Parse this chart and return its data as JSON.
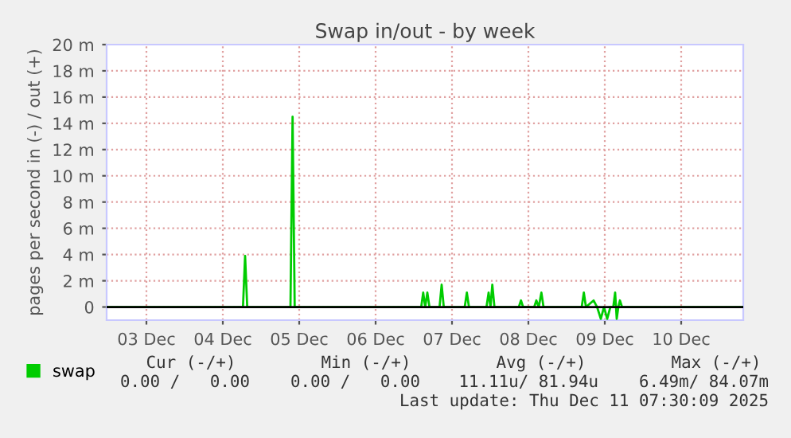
{
  "chart_data": {
    "type": "line",
    "title": "Swap in/out - by week",
    "ylabel": "pages per second in (-) / out (+)",
    "xlim": [
      "2025-12-02T23:30",
      "2025-12-11T07:30"
    ],
    "xticks": [
      {
        "value": "2025-12-03T12:00",
        "label": "03 Dec"
      },
      {
        "value": "2025-12-04T12:00",
        "label": "04 Dec"
      },
      {
        "value": "2025-12-05T12:00",
        "label": "05 Dec"
      },
      {
        "value": "2025-12-06T12:00",
        "label": "06 Dec"
      },
      {
        "value": "2025-12-07T12:00",
        "label": "07 Dec"
      },
      {
        "value": "2025-12-08T12:00",
        "label": "08 Dec"
      },
      {
        "value": "2025-12-09T12:00",
        "label": "09 Dec"
      },
      {
        "value": "2025-12-10T12:00",
        "label": "10 Dec"
      }
    ],
    "ylim": [
      -1,
      20
    ],
    "yticks": [
      0,
      {
        "value": 2,
        "label": "2 m"
      },
      {
        "value": 4,
        "label": "4 m"
      },
      {
        "value": 6,
        "label": "6 m"
      },
      {
        "value": 8,
        "label": "8 m"
      },
      {
        "value": 10,
        "label": "10 m"
      },
      {
        "value": 12,
        "label": "12 m"
      },
      {
        "value": 14,
        "label": "14 m"
      },
      {
        "value": 16,
        "label": "16 m"
      },
      {
        "value": 18,
        "label": "18 m"
      },
      {
        "value": 20,
        "label": "20 m"
      }
    ],
    "grid": true,
    "legend": "bottom",
    "ref_lines": [
      {
        "axis": "y",
        "value": 0,
        "color": "#000000"
      }
    ],
    "series": [
      {
        "name": "swap",
        "color": "#00cc00",
        "x": [
          "2025-12-02T23:30",
          "2025-12-04T18:20",
          "2025-12-04T19:00",
          "2025-12-04T19:40",
          "2025-12-05T09:15",
          "2025-12-05T09:55",
          "2025-12-05T10:35",
          "2025-12-07T02:20",
          "2025-12-07T02:57",
          "2025-12-07T03:35",
          "2025-12-07T04:15",
          "2025-12-07T04:55",
          "2025-12-07T08:05",
          "2025-12-07T08:45",
          "2025-12-07T09:25",
          "2025-12-07T16:00",
          "2025-12-07T16:40",
          "2025-12-07T17:20",
          "2025-12-07T22:50",
          "2025-12-07T23:30",
          "2025-12-08T00:05",
          "2025-12-08T00:40",
          "2025-12-08T01:20",
          "2025-12-08T09:00",
          "2025-12-08T09:40",
          "2025-12-08T10:20",
          "2025-12-08T13:50",
          "2025-12-08T14:30",
          "2025-12-08T15:15",
          "2025-12-08T16:05",
          "2025-12-08T16:45",
          "2025-12-09T04:45",
          "2025-12-09T05:25",
          "2025-12-09T06:05",
          "2025-12-09T08:30",
          "2025-12-09T09:35",
          "2025-12-09T10:45",
          "2025-12-09T11:45",
          "2025-12-09T12:45",
          "2025-12-09T13:45",
          "2025-12-09T14:40",
          "2025-12-09T15:15",
          "2025-12-09T15:45",
          "2025-12-09T16:15",
          "2025-12-09T16:45",
          "2025-12-09T17:25",
          "2025-12-11T07:30"
        ],
        "values": [
          0,
          0,
          3.9,
          0,
          0,
          14.5,
          0,
          0,
          1.1,
          0,
          1.1,
          0,
          0,
          1.7,
          0,
          0,
          1.1,
          0,
          0,
          1.1,
          0,
          1.7,
          0,
          0,
          0.5,
          0,
          0,
          0.5,
          0,
          1.1,
          0,
          0,
          1.1,
          0,
          0.5,
          0,
          -0.9,
          0,
          -0.9,
          0,
          0,
          1.1,
          -0.9,
          0,
          0.5,
          0,
          0
        ]
      }
    ],
    "annotations": [
      "Cur (-/+)",
      "Min (-/+)",
      "Avg (-/+)",
      "Max (-/+)",
      "0.00 /   0.00",
      "0.00 /   0.00",
      "11.11u/ 81.94u",
      "6.49m/ 84.07m",
      "Last update: Thu Dec 11 07:30:09 2025"
    ]
  }
}
